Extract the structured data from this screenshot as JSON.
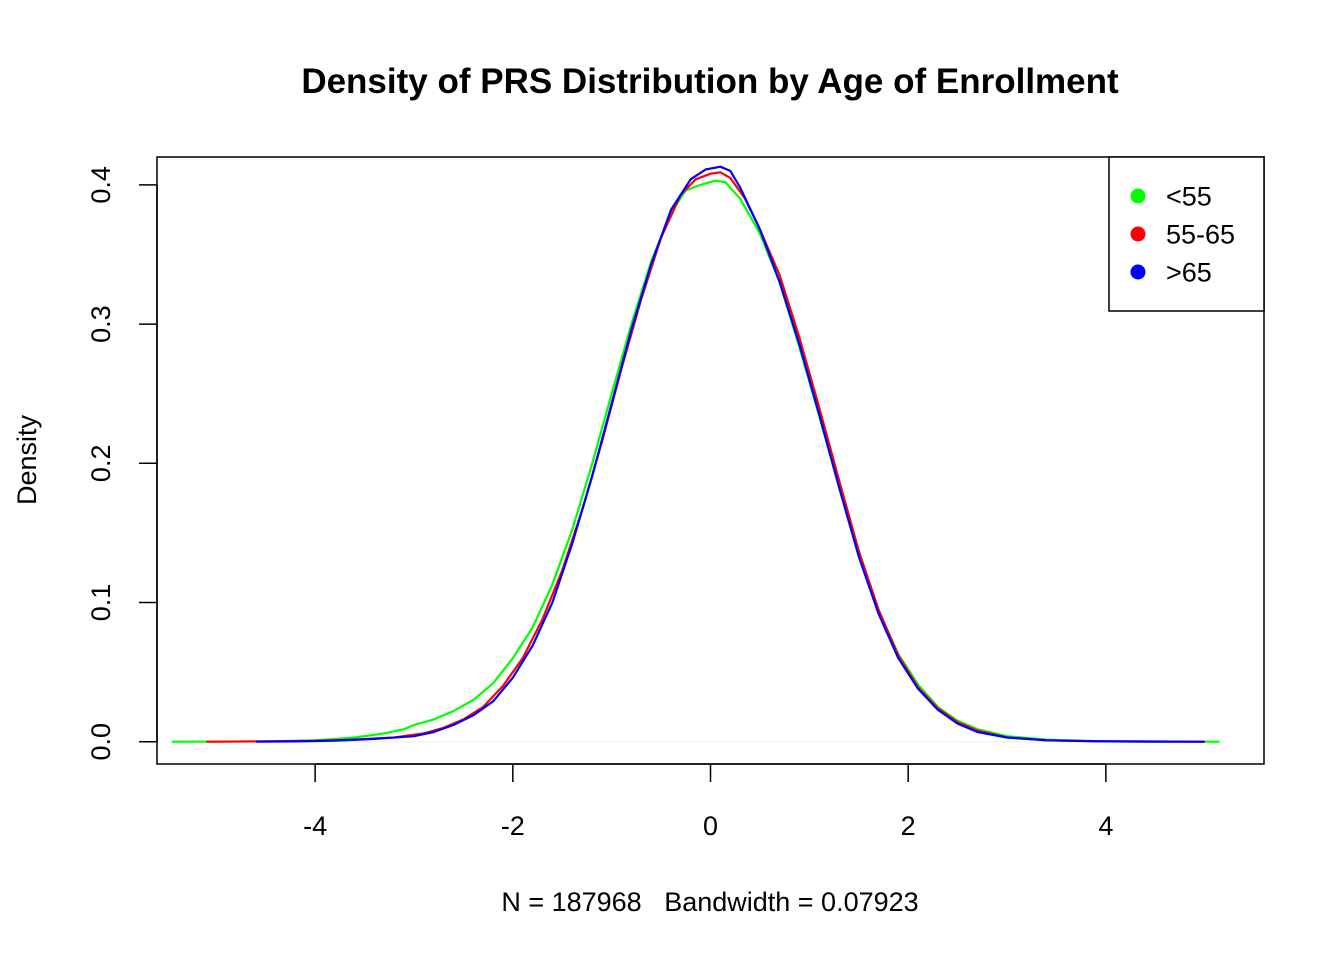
{
  "chart_data": {
    "type": "line",
    "title": "Density of PRS Distribution by Age of Enrollment",
    "xlabel": "N = 187968   Bandwidth = 0.07923",
    "ylabel": "Density",
    "xlim": [
      -5.6,
      5.6
    ],
    "ylim": [
      -0.016,
      0.42
    ],
    "x_ticks": [
      -4,
      -2,
      0,
      2,
      4
    ],
    "x_tick_labels": [
      "-4",
      "-2",
      "0",
      "2",
      "4"
    ],
    "y_ticks": [
      0.0,
      0.1,
      0.2,
      0.3,
      0.4
    ],
    "y_tick_labels": [
      "0.0",
      "0.1",
      "0.2",
      "0.3",
      "0.4"
    ],
    "legend_position": "top-right",
    "baseline_color": "#eeeeee",
    "series": [
      {
        "name": "<55",
        "color": "#00ff00",
        "points": [
          [
            -5.45,
            0.0
          ],
          [
            -4.5,
            0.0002
          ],
          [
            -4.0,
            0.001
          ],
          [
            -3.6,
            0.003
          ],
          [
            -3.3,
            0.006
          ],
          [
            -3.1,
            0.009
          ],
          [
            -3.0,
            0.012
          ],
          [
            -2.8,
            0.016
          ],
          [
            -2.6,
            0.022
          ],
          [
            -2.4,
            0.03
          ],
          [
            -2.2,
            0.042
          ],
          [
            -2.0,
            0.06
          ],
          [
            -1.8,
            0.082
          ],
          [
            -1.6,
            0.113
          ],
          [
            -1.4,
            0.152
          ],
          [
            -1.2,
            0.199
          ],
          [
            -1.0,
            0.25
          ],
          [
            -0.8,
            0.3
          ],
          [
            -0.6,
            0.345
          ],
          [
            -0.4,
            0.38
          ],
          [
            -0.25,
            0.396
          ],
          [
            -0.1,
            0.4
          ],
          [
            0.05,
            0.403
          ],
          [
            0.15,
            0.402
          ],
          [
            0.3,
            0.39
          ],
          [
            0.5,
            0.365
          ],
          [
            0.7,
            0.33
          ],
          [
            0.9,
            0.283
          ],
          [
            1.1,
            0.234
          ],
          [
            1.3,
            0.183
          ],
          [
            1.5,
            0.135
          ],
          [
            1.7,
            0.094
          ],
          [
            1.9,
            0.063
          ],
          [
            2.1,
            0.041
          ],
          [
            2.3,
            0.025
          ],
          [
            2.5,
            0.015
          ],
          [
            2.7,
            0.009
          ],
          [
            3.0,
            0.004
          ],
          [
            3.4,
            0.0015
          ],
          [
            3.8,
            0.0005
          ],
          [
            4.3,
            0.0001
          ],
          [
            5.15,
            0.0
          ]
        ]
      },
      {
        "name": "55-65",
        "color": "#ff0000",
        "points": [
          [
            -5.1,
            0.0
          ],
          [
            -4.5,
            0.0002
          ],
          [
            -4.0,
            0.0006
          ],
          [
            -3.6,
            0.0015
          ],
          [
            -3.2,
            0.003
          ],
          [
            -2.9,
            0.006
          ],
          [
            -2.7,
            0.01
          ],
          [
            -2.5,
            0.016
          ],
          [
            -2.3,
            0.025
          ],
          [
            -2.1,
            0.04
          ],
          [
            -1.9,
            0.06
          ],
          [
            -1.7,
            0.088
          ],
          [
            -1.5,
            0.123
          ],
          [
            -1.3,
            0.166
          ],
          [
            -1.1,
            0.215
          ],
          [
            -0.9,
            0.268
          ],
          [
            -0.7,
            0.318
          ],
          [
            -0.5,
            0.362
          ],
          [
            -0.3,
            0.393
          ],
          [
            -0.15,
            0.404
          ],
          [
            0.0,
            0.408
          ],
          [
            0.1,
            0.409
          ],
          [
            0.2,
            0.405
          ],
          [
            0.35,
            0.39
          ],
          [
            0.5,
            0.368
          ],
          [
            0.7,
            0.335
          ],
          [
            0.9,
            0.29
          ],
          [
            1.1,
            0.24
          ],
          [
            1.3,
            0.188
          ],
          [
            1.5,
            0.137
          ],
          [
            1.7,
            0.095
          ],
          [
            1.9,
            0.062
          ],
          [
            2.1,
            0.039
          ],
          [
            2.3,
            0.024
          ],
          [
            2.5,
            0.014
          ],
          [
            2.7,
            0.008
          ],
          [
            3.0,
            0.003
          ],
          [
            3.4,
            0.001
          ],
          [
            3.9,
            0.0003
          ],
          [
            5.0,
            0.0
          ]
        ]
      },
      {
        "name": ">65",
        "color": "#0000ff",
        "points": [
          [
            -4.6,
            0.0
          ],
          [
            -4.2,
            0.0002
          ],
          [
            -3.8,
            0.0008
          ],
          [
            -3.4,
            0.002
          ],
          [
            -3.0,
            0.004
          ],
          [
            -2.8,
            0.007
          ],
          [
            -2.6,
            0.012
          ],
          [
            -2.4,
            0.019
          ],
          [
            -2.2,
            0.029
          ],
          [
            -2.0,
            0.046
          ],
          [
            -1.8,
            0.069
          ],
          [
            -1.6,
            0.1
          ],
          [
            -1.4,
            0.142
          ],
          [
            -1.2,
            0.19
          ],
          [
            -1.0,
            0.243
          ],
          [
            -0.8,
            0.296
          ],
          [
            -0.6,
            0.343
          ],
          [
            -0.4,
            0.382
          ],
          [
            -0.2,
            0.404
          ],
          [
            -0.05,
            0.411
          ],
          [
            0.1,
            0.413
          ],
          [
            0.2,
            0.41
          ],
          [
            0.3,
            0.398
          ],
          [
            0.5,
            0.368
          ],
          [
            0.7,
            0.33
          ],
          [
            0.9,
            0.285
          ],
          [
            1.1,
            0.235
          ],
          [
            1.3,
            0.183
          ],
          [
            1.5,
            0.133
          ],
          [
            1.7,
            0.092
          ],
          [
            1.9,
            0.06
          ],
          [
            2.1,
            0.038
          ],
          [
            2.3,
            0.023
          ],
          [
            2.5,
            0.013
          ],
          [
            2.7,
            0.007
          ],
          [
            3.0,
            0.003
          ],
          [
            3.4,
            0.001
          ],
          [
            4.0,
            0.0002
          ],
          [
            5.0,
            0.0
          ]
        ]
      }
    ]
  }
}
